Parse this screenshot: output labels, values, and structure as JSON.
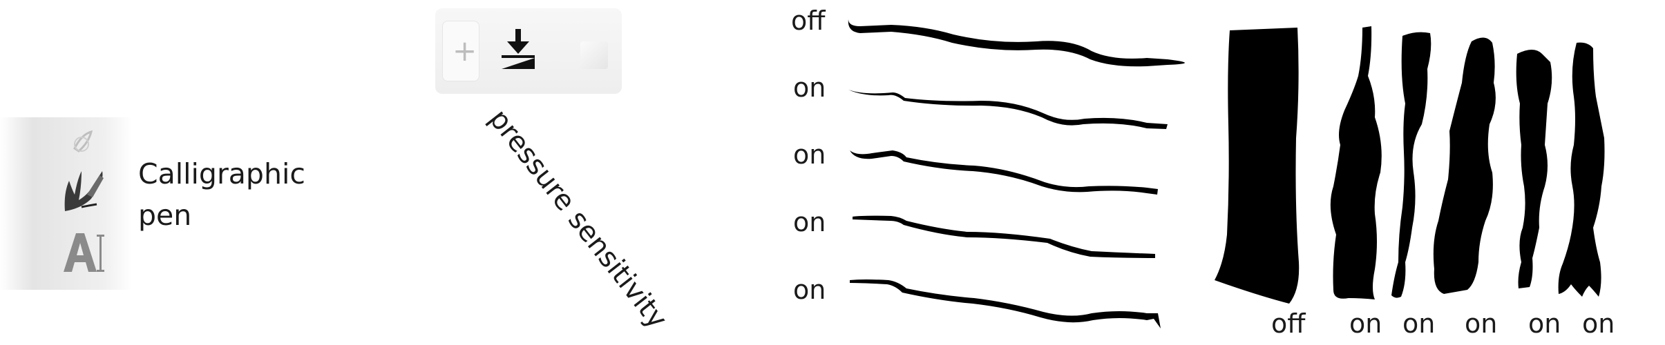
{
  "toolbox": {
    "items": [
      {
        "name": "tool-above",
        "icon": "pen-icon"
      },
      {
        "name": "calligraphic-tool",
        "icon": "calligraphy-pen-icon"
      },
      {
        "name": "text-tool",
        "icon": "text-tool-icon"
      }
    ],
    "label_line1": "Calligraphic",
    "label_line2": "pen"
  },
  "control_bar": {
    "add_icon": "plus-icon",
    "add_glyph": "+",
    "pressure_icon": "pressure-sensitivity-icon",
    "annotation": "pressure sensitivity"
  },
  "horizontal_strokes": {
    "labels": [
      "off",
      "on",
      "on",
      "on",
      "on"
    ]
  },
  "vertical_strokes": {
    "labels": [
      "off",
      "on",
      "on",
      "on",
      "on",
      "on"
    ]
  },
  "colors": {
    "ink": "#000000",
    "text": "#1a1a1a",
    "toolbar_bg": "#eeeeee"
  }
}
